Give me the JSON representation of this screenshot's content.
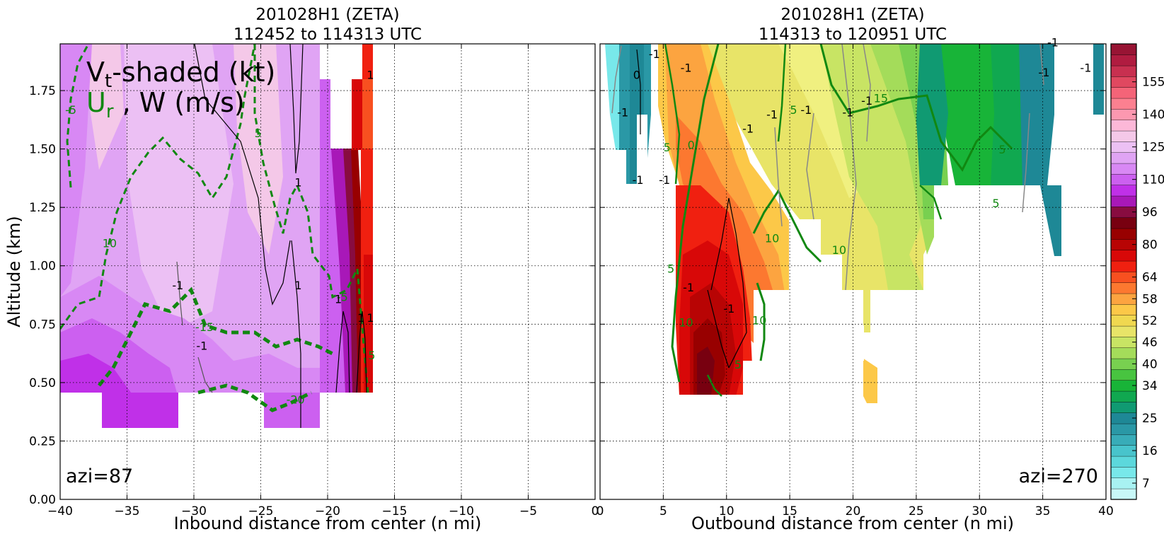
{
  "figure": {
    "ylabel": "Altitude (km)",
    "overlay_label_vt": "V",
    "overlay_label_vt_sub": "t",
    "overlay_label_vt_rest": "-shaded (kt)",
    "overlay_label_ur": "U",
    "overlay_label_ur_sub": "r",
    "overlay_label_rest": " , W (m/s)"
  },
  "chart_data": [
    {
      "type": "heatmap",
      "title_line1": "201028H1 (ZETA)",
      "title_line2": "112452 to 114313 UTC",
      "xlabel": "Inbound distance from center (n mi)",
      "xlim": [
        -40,
        0
      ],
      "ylim": [
        0,
        1.95
      ],
      "x_ticks": [
        -40,
        -35,
        -30,
        -25,
        -20,
        -15,
        -10,
        -5,
        0
      ],
      "x_tick_labels": [
        "−40",
        "−35",
        "−30",
        "−25",
        "−20",
        "−15",
        "−10",
        "−5",
        "0"
      ],
      "y_ticks": [
        0.0,
        0.25,
        0.5,
        0.75,
        1.0,
        1.25,
        1.5,
        1.75
      ],
      "y_tick_labels": [
        "0.00",
        "0.25",
        "0.50",
        "0.75",
        "1.00",
        "1.25",
        "1.50",
        "1.75"
      ],
      "grid": true,
      "annotation": "azi=87",
      "contour_labels": [
        {
          "text": "-5",
          "x": -39.2,
          "y": 1.65,
          "color": "#118811"
        },
        {
          "text": "5",
          "x": -25.2,
          "y": 1.55,
          "color": "#118811"
        },
        {
          "text": "10",
          "x": -36.3,
          "y": 1.08,
          "color": "#118811"
        },
        {
          "text": "-15",
          "x": -29.2,
          "y": 0.72,
          "color": "#118811"
        },
        {
          "text": "-20",
          "x": -22.4,
          "y": 0.41,
          "color": "#118811"
        },
        {
          "text": "-5",
          "x": -18.9,
          "y": 0.85,
          "color": "#118811"
        },
        {
          "text": "5",
          "x": -16.7,
          "y": 0.6,
          "color": "#118811"
        },
        {
          "text": "1",
          "x": -22.2,
          "y": 1.34,
          "color": "#000000"
        },
        {
          "text": "1",
          "x": -22.2,
          "y": 0.9,
          "color": "#000000"
        },
        {
          "text": "-1",
          "x": -31.2,
          "y": 0.9,
          "color": "#000000"
        },
        {
          "text": "-1",
          "x": -29.4,
          "y": 0.64,
          "color": "#000000"
        },
        {
          "text": "1",
          "x": -19.2,
          "y": 0.84,
          "color": "#000000"
        },
        {
          "text": "1",
          "x": -17.5,
          "y": 0.76,
          "color": "#000000"
        },
        {
          "text": "1",
          "x": -16.8,
          "y": 1.8,
          "color": "#000000"
        },
        {
          "text": "1",
          "x": -16.8,
          "y": 0.76,
          "color": "#000000"
        }
      ]
    },
    {
      "type": "heatmap",
      "title_line1": "201028H1 (ZETA)",
      "title_line2": "114313 to 120951 UTC",
      "xlabel": "Outbound distance from center (n mi)",
      "xlim": [
        0,
        40
      ],
      "ylim": [
        0,
        1.95
      ],
      "x_ticks": [
        0,
        5,
        10,
        15,
        20,
        25,
        30,
        35,
        40
      ],
      "x_tick_labels": [
        "0",
        "5",
        "10",
        "15",
        "20",
        "25",
        "30",
        "35",
        "40"
      ],
      "grid": true,
      "annotation": "azi=270",
      "contour_labels": [
        {
          "text": "-1",
          "x": 4.3,
          "y": 1.89,
          "color": "#000000"
        },
        {
          "text": "-1",
          "x": 6.8,
          "y": 1.83,
          "color": "#000000"
        },
        {
          "text": "0",
          "x": 2.9,
          "y": 1.8,
          "color": "#000000"
        },
        {
          "text": "-1",
          "x": 1.8,
          "y": 1.64,
          "color": "#000000"
        },
        {
          "text": "5",
          "x": 5.3,
          "y": 1.49,
          "color": "#118811"
        },
        {
          "text": "0",
          "x": 7.2,
          "y": 1.5,
          "color": "#118811"
        },
        {
          "text": "-1",
          "x": 5.1,
          "y": 1.35,
          "color": "#000000"
        },
        {
          "text": "-1",
          "x": 3.0,
          "y": 1.35,
          "color": "#000000"
        },
        {
          "text": "-1",
          "x": 11.7,
          "y": 1.57,
          "color": "#000000"
        },
        {
          "text": "-1",
          "x": 13.6,
          "y": 1.63,
          "color": "#000000"
        },
        {
          "text": "5",
          "x": 15.3,
          "y": 1.65,
          "color": "#118811"
        },
        {
          "text": "-1",
          "x": 16.3,
          "y": 1.65,
          "color": "#000000"
        },
        {
          "text": "-1",
          "x": 19.6,
          "y": 1.64,
          "color": "#000000"
        },
        {
          "text": "-1",
          "x": 21.1,
          "y": 1.69,
          "color": "#000000"
        },
        {
          "text": "15",
          "x": 22.2,
          "y": 1.7,
          "color": "#118811"
        },
        {
          "text": "10",
          "x": 13.6,
          "y": 1.1,
          "color": "#118811"
        },
        {
          "text": "10",
          "x": 18.9,
          "y": 1.05,
          "color": "#118811"
        },
        {
          "text": "5",
          "x": 5.6,
          "y": 0.97,
          "color": "#118811"
        },
        {
          "text": "-1",
          "x": 7.0,
          "y": 0.89,
          "color": "#000000"
        },
        {
          "text": "-1",
          "x": 10.2,
          "y": 0.8,
          "color": "#000000"
        },
        {
          "text": "10",
          "x": 6.8,
          "y": 0.74,
          "color": "#118811"
        },
        {
          "text": "10",
          "x": 12.6,
          "y": 0.75,
          "color": "#118811"
        },
        {
          "text": "5",
          "x": 10.9,
          "y": 0.56,
          "color": "#118811"
        },
        {
          "text": "5",
          "x": 31.3,
          "y": 1.25,
          "color": "#118811"
        },
        {
          "text": "5",
          "x": 31.8,
          "y": 1.48,
          "color": "#118811"
        },
        {
          "text": "-1",
          "x": 35.1,
          "y": 1.81,
          "color": "#000000"
        },
        {
          "text": "-1",
          "x": 35.8,
          "y": 1.94,
          "color": "#000000"
        },
        {
          "text": "-1",
          "x": 38.4,
          "y": 1.83,
          "color": "#000000"
        }
      ]
    }
  ],
  "colorbar": {
    "ticks": [
      {
        "label": "155",
        "index": 29
      },
      {
        "label": "140",
        "index": 26
      },
      {
        "label": "125",
        "index": 23
      },
      {
        "label": "110",
        "index": 20
      },
      {
        "label": "96",
        "index": 17
      },
      {
        "label": "80",
        "index": 14
      },
      {
        "label": "64",
        "index": 11
      },
      {
        "label": "58",
        "index": 9
      },
      {
        "label": "52",
        "index": 7
      },
      {
        "label": "46",
        "index": 5
      },
      {
        "label": "40",
        "index": 3
      },
      {
        "label": "34",
        "index": 1
      },
      {
        "label": "25",
        "index": -2
      },
      {
        "label": "16",
        "index": -5
      },
      {
        "label": "7",
        "index": -8
      }
    ],
    "colors": [
      "#c8f8f8",
      "#a8f2f2",
      "#78e8ea",
      "#5cd8dc",
      "#48c4cc",
      "#38acb8",
      "#2a98a6",
      "#1e8896",
      "#109a72",
      "#10a850",
      "#18b438",
      "#48c440",
      "#78d050",
      "#a4dc5a",
      "#c8e464",
      "#e8e468",
      "#f0d850",
      "#fcc848",
      "#fca440",
      "#fc7830",
      "#f85020",
      "#f02010",
      "#d80808",
      "#b80404",
      "#980000",
      "#780010",
      "#880c40",
      "#a818b8",
      "#c030e8",
      "#cc60f0",
      "#d888f4",
      "#e0a4f4",
      "#ecc0f4",
      "#f4c8e8",
      "#fcb8d8",
      "#fc98b0",
      "#fc8090",
      "#f46478",
      "#e04860",
      "#c83050",
      "#b01c40",
      "#981434"
    ]
  }
}
